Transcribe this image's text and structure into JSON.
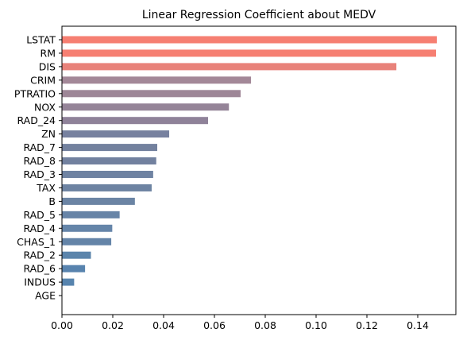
{
  "chart_data": {
    "type": "bar",
    "orientation": "horizontal",
    "title": "Linear Regression Coefficient about MEDV",
    "xlabel": "",
    "ylabel": "",
    "xlim": [
      0,
      0.155
    ],
    "xticks": [
      "0.00",
      "0.02",
      "0.04",
      "0.06",
      "0.08",
      "0.10",
      "0.12",
      "0.14"
    ],
    "xtick_values": [
      0,
      0.02,
      0.04,
      0.06,
      0.08,
      0.1,
      0.12,
      0.14
    ],
    "grid": false,
    "categories": [
      "LSTAT",
      "RM",
      "DIS",
      "CRIM",
      "PTRATIO",
      "NOX",
      "RAD_24",
      "ZN",
      "RAD_7",
      "RAD_8",
      "RAD_3",
      "TAX",
      "B",
      "RAD_5",
      "RAD_4",
      "CHAS_1",
      "RAD_2",
      "RAD_6",
      "INDUS",
      "AGE"
    ],
    "values": [
      0.1475,
      0.1472,
      0.1316,
      0.0744,
      0.0703,
      0.0657,
      0.0575,
      0.0422,
      0.0375,
      0.0371,
      0.0359,
      0.0353,
      0.0287,
      0.0227,
      0.0198,
      0.0194,
      0.0114,
      0.0091,
      0.0048,
      0.0
    ],
    "colors": [
      "#f67f72",
      "#f67f72",
      "#e8827a",
      "#a38898",
      "#9e8697",
      "#958498",
      "#8f8299",
      "#77819f",
      "#73819e",
      "#72819f",
      "#6f83a2",
      "#6d83a2",
      "#6b84a4",
      "#6784a7",
      "#6585a9",
      "#6484a8",
      "#5b84ab",
      "#5883ae",
      "#5784ae",
      "#5584af"
    ]
  }
}
